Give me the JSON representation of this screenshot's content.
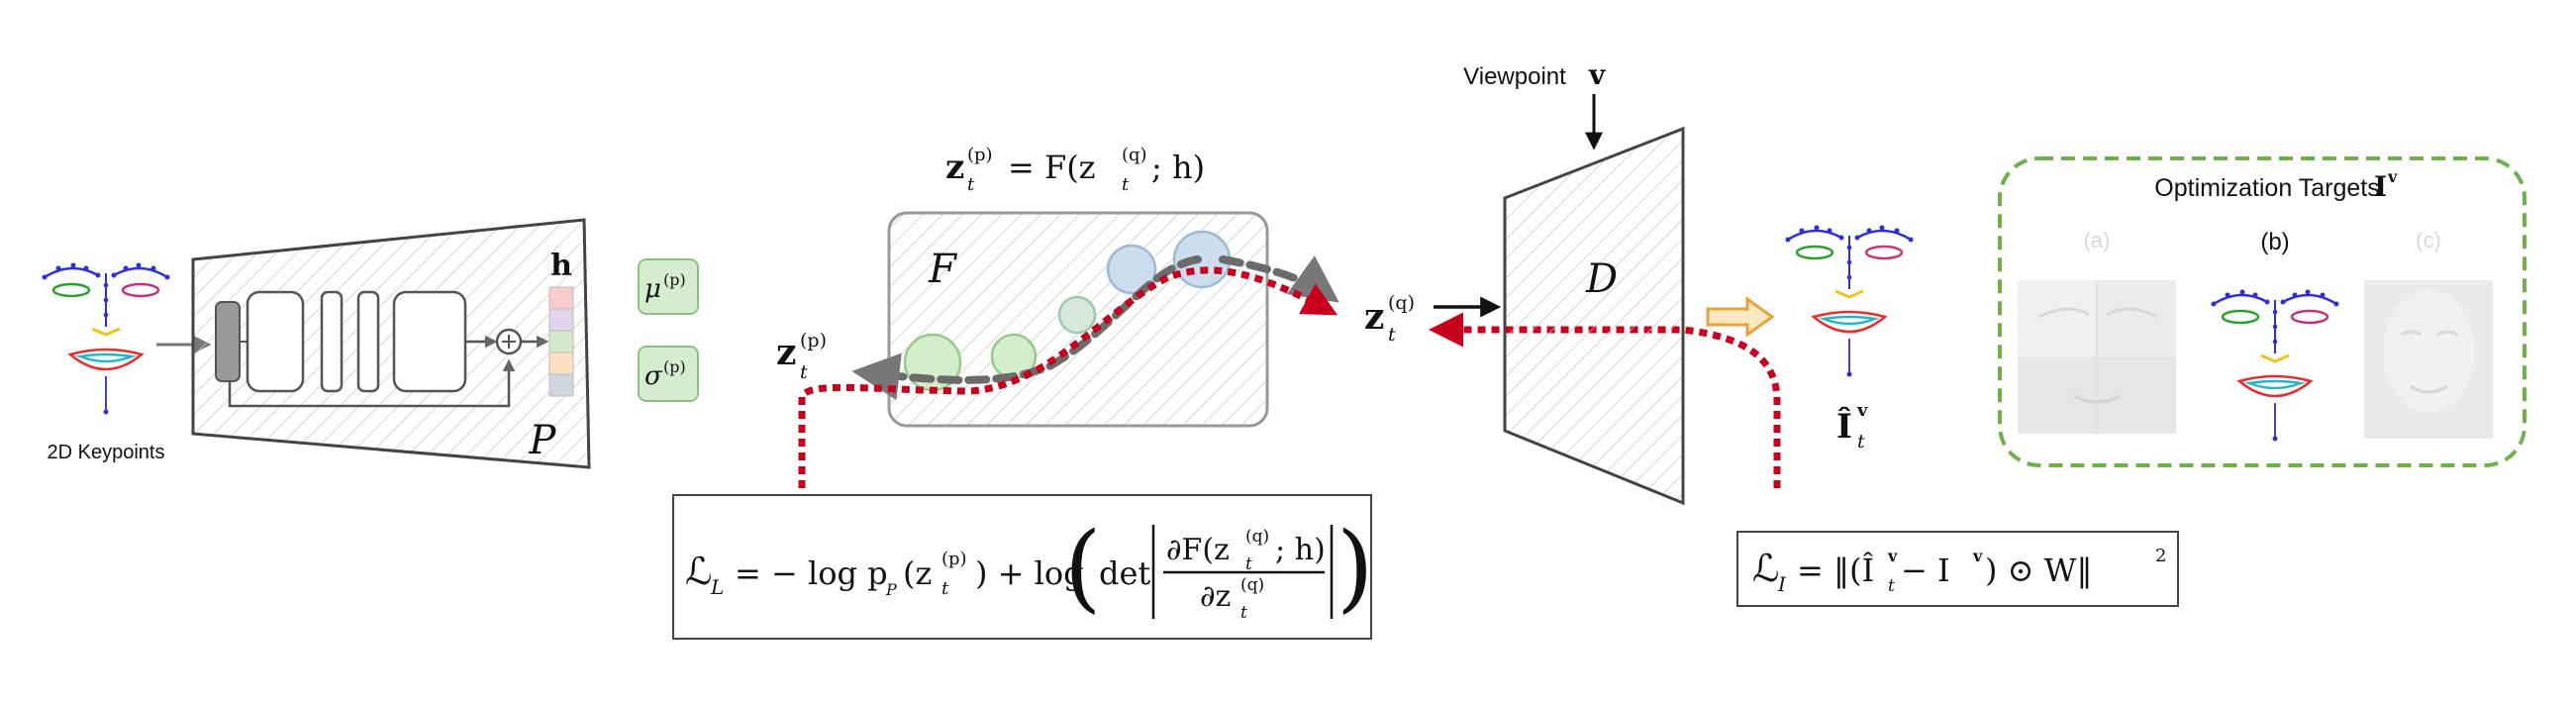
{
  "encoder": {
    "input_label": "2D Keypoints",
    "block_label": "P",
    "latent_label": "h",
    "mu_label": "μ",
    "mu_sup": "(p)",
    "sigma_label": "σ",
    "sigma_sup": "(p)",
    "colors": {
      "mu_bg": "#d6ecd0",
      "mu_border": "#8dbf80",
      "bar_colors": [
        "#f6cccc",
        "#e2d4ef",
        "#d4e9c9",
        "#fbe0c2",
        "#cfd6e0"
      ]
    }
  },
  "flow": {
    "equation_lhs": "z",
    "equation_lhs_sup": "(p)",
    "equation_rhs": "= F(z",
    "equation_rhs_sup": "(q)",
    "equation_tail": "; h)",
    "block_label": "F",
    "z_p_label": "z",
    "z_p_sup": "(p)",
    "z_q_label": "z",
    "z_q_sup": "(q)",
    "sub_t": "t"
  },
  "decoder": {
    "viewpoint_label": "Viewpoint",
    "viewpoint_var": "v",
    "block_label": "D",
    "output_label": "Î",
    "output_sup": "v",
    "output_sub": "t"
  },
  "targets": {
    "title": "Optimization Targets",
    "title_var": "I",
    "title_sup": "v",
    "labels": [
      "(a)",
      "(b)",
      "(c)"
    ]
  },
  "loss_latent": {
    "lhs": "ℒ",
    "lhs_sub": "L",
    "text_1": "= − log p",
    "text_1_sub": "P",
    "text_2": "(z",
    "text_2_sup": "(p)",
    "text_3": ") + log",
    "det": "det",
    "numerator": "∂F(z",
    "numerator_sup": "(q)",
    "numerator_tail": "; h)",
    "denominator": "∂z",
    "denominator_sup": "(q)"
  },
  "loss_image": {
    "lhs": "ℒ",
    "lhs_sub": "I",
    "text": "= ‖(Î",
    "text_sup": "v",
    "text_2": " − I",
    "text_2_sup": "v",
    "text_3": ") ⊙ W‖",
    "text_3_sup": "2"
  },
  "colors": {
    "accent_red": "#c8001e",
    "flow_gray": "#6b6b6b",
    "target_green": "#6fb04a",
    "arrow_orange": "#e8a23a"
  }
}
